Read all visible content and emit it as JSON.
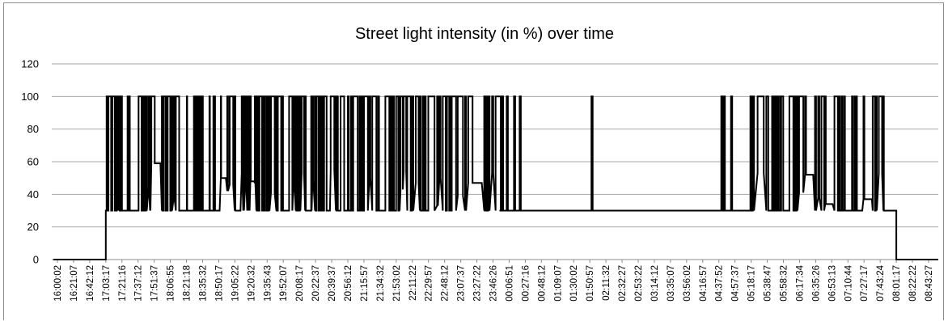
{
  "chart_data": {
    "type": "line",
    "title": "Street light intensity (in %) over time",
    "xlabel": "",
    "ylabel": "",
    "ylim": [
      0,
      120
    ],
    "yticks": [
      0,
      20,
      40,
      60,
      80,
      100,
      120
    ],
    "grid": "horizontal",
    "legend": "none",
    "line_color": "#000000",
    "x_tick_labels": [
      "16:00:02",
      "16:21:07",
      "16:42:12",
      "17:03:17",
      "17:21:16",
      "17:37:12",
      "17:51:37",
      "18:06:55",
      "18:21:18",
      "18:35:32",
      "18:50:17",
      "19:05:22",
      "19:20:32",
      "19:35:43",
      "19:52:07",
      "20:08:17",
      "20:22:37",
      "20:39:37",
      "20:56:12",
      "21:15:57",
      "21:34:32",
      "21:53:02",
      "22:11:22",
      "22:29:57",
      "22:48:12",
      "23:07:37",
      "23:27:22",
      "23:46:26",
      "00:06:51",
      "00:27:16",
      "00:48:12",
      "01:09:07",
      "01:30:02",
      "01:50:57",
      "02:11:32",
      "02:32:27",
      "02:53:22",
      "03:14:12",
      "03:35:07",
      "03:56:02",
      "04:16:57",
      "04:37:52",
      "04:57:37",
      "05:18:17",
      "05:38:47",
      "05:58:32",
      "06:17:34",
      "06:35:26",
      "06:53:13",
      "07:10:44",
      "07:27:17",
      "07:43:24",
      "08:01:17",
      "08:22:22",
      "08:43:27"
    ],
    "series": [
      {
        "name": "",
        "points": [
          [
            "16:00:02",
            0
          ],
          [
            "17:03:17",
            0
          ],
          [
            "17:03:17",
            30
          ],
          [
            "17:03:17 to 23:55:00",
            "oscillating 30-100"
          ],
          [
            "00:06:51",
            30
          ],
          [
            "01:50:57",
            100
          ],
          [
            "01:50:57",
            30
          ],
          [
            "04:37:52 to 08:00:00",
            "oscillating 30-100"
          ],
          [
            "08:01:17",
            30
          ],
          [
            "08:01:17",
            0
          ],
          [
            "08:43:27",
            0
          ]
        ]
      }
    ]
  }
}
